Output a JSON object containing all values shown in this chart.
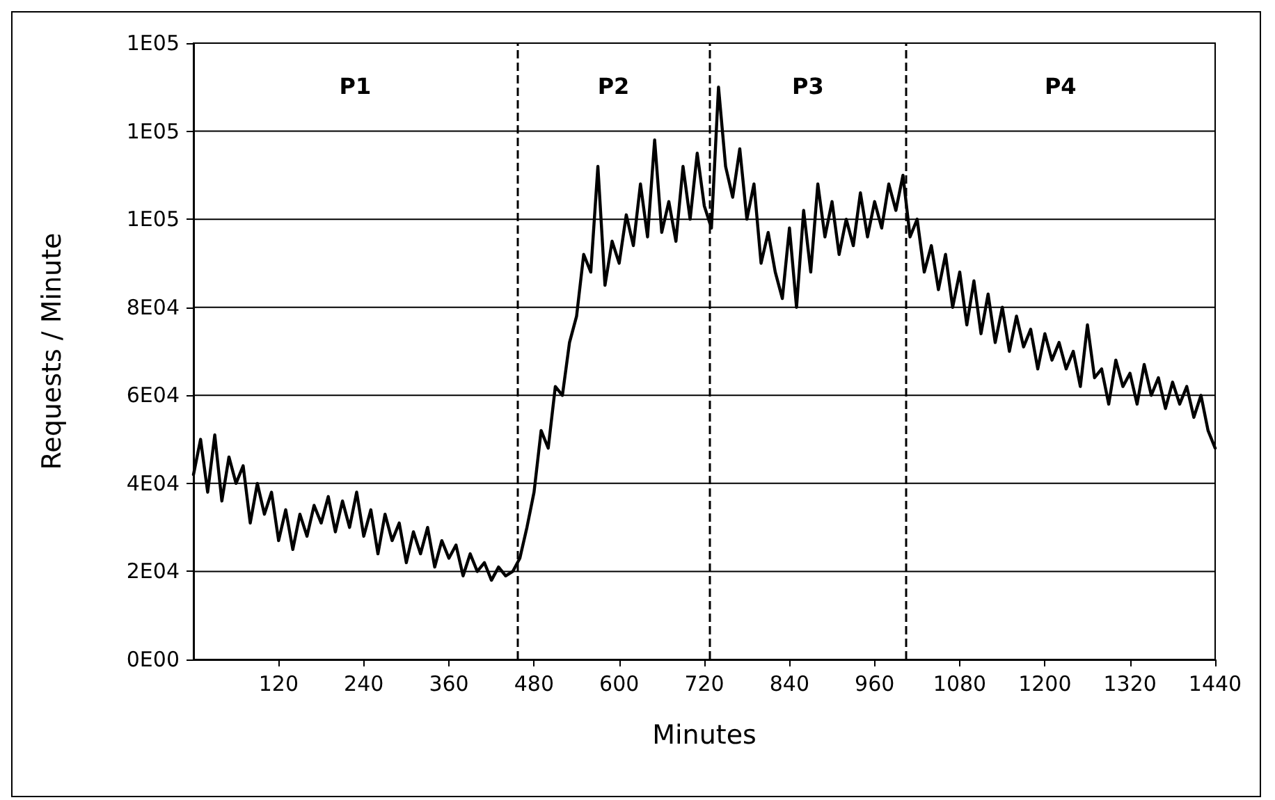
{
  "chart_data": {
    "type": "line",
    "xlabel": "Minutes",
    "ylabel": "Requests / Minute",
    "x": [
      0,
      10,
      20,
      30,
      40,
      50,
      60,
      70,
      80,
      90,
      100,
      110,
      120,
      130,
      140,
      150,
      160,
      170,
      180,
      190,
      200,
      210,
      220,
      230,
      240,
      250,
      260,
      270,
      280,
      290,
      300,
      310,
      320,
      330,
      340,
      350,
      360,
      370,
      380,
      390,
      400,
      410,
      420,
      430,
      440,
      450,
      460,
      470,
      480,
      490,
      500,
      510,
      520,
      530,
      540,
      550,
      560,
      570,
      580,
      590,
      600,
      610,
      620,
      630,
      640,
      650,
      660,
      670,
      680,
      690,
      700,
      710,
      720,
      730,
      740,
      750,
      760,
      770,
      780,
      790,
      800,
      810,
      820,
      830,
      840,
      850,
      860,
      870,
      880,
      890,
      900,
      910,
      920,
      930,
      940,
      950,
      960,
      970,
      980,
      990,
      1000,
      1010,
      1020,
      1030,
      1040,
      1050,
      1060,
      1070,
      1080,
      1090,
      1100,
      1110,
      1120,
      1130,
      1140,
      1150,
      1160,
      1170,
      1180,
      1190,
      1200,
      1210,
      1220,
      1230,
      1240,
      1250,
      1260,
      1270,
      1280,
      1290,
      1300,
      1310,
      1320,
      1330,
      1340,
      1350,
      1360,
      1370,
      1380,
      1390,
      1400,
      1410,
      1420,
      1430,
      1440
    ],
    "series": [
      {
        "color": "#000000",
        "values": [
          42000,
          50000,
          38000,
          51000,
          36000,
          46000,
          40000,
          44000,
          31000,
          40000,
          33000,
          38000,
          27000,
          34000,
          25000,
          33000,
          28000,
          35000,
          31000,
          37000,
          29000,
          36000,
          30000,
          38000,
          28000,
          34000,
          24000,
          33000,
          27000,
          31000,
          22000,
          29000,
          24000,
          30000,
          21000,
          27000,
          23000,
          26000,
          19000,
          24000,
          20000,
          22000,
          18000,
          21000,
          19000,
          20000,
          23000,
          30000,
          38000,
          52000,
          48000,
          62000,
          60000,
          72000,
          78000,
          92000,
          88000,
          112000,
          85000,
          95000,
          90000,
          101000,
          94000,
          108000,
          96000,
          118000,
          97000,
          104000,
          95000,
          112000,
          100000,
          115000,
          103000,
          98000,
          130000,
          112000,
          105000,
          116000,
          100000,
          108000,
          90000,
          97000,
          88000,
          82000,
          98000,
          80000,
          102000,
          88000,
          108000,
          96000,
          104000,
          92000,
          100000,
          94000,
          106000,
          96000,
          104000,
          98000,
          108000,
          102000,
          110000,
          96000,
          100000,
          88000,
          94000,
          84000,
          92000,
          80000,
          88000,
          76000,
          86000,
          74000,
          83000,
          72000,
          80000,
          70000,
          78000,
          71000,
          75000,
          66000,
          74000,
          68000,
          72000,
          66000,
          70000,
          62000,
          76000,
          64000,
          66000,
          58000,
          68000,
          62000,
          65000,
          58000,
          67000,
          60000,
          64000,
          57000,
          63000,
          58000,
          62000,
          55000,
          60000,
          52000,
          48000
        ]
      }
    ],
    "xlim": [
      0,
      1440
    ],
    "xticks": [
      120,
      240,
      360,
      480,
      600,
      720,
      840,
      960,
      1080,
      1200,
      1320,
      1440
    ],
    "ylim": [
      0,
      140000
    ],
    "yticks": [
      {
        "value": 0,
        "label": "0E00"
      },
      {
        "value": 20000,
        "label": "2E04"
      },
      {
        "value": 40000,
        "label": "4E04"
      },
      {
        "value": 60000,
        "label": "6E04"
      },
      {
        "value": 80000,
        "label": "8E04"
      },
      {
        "value": 100000,
        "label": "1E05"
      },
      {
        "value": 120000,
        "label": "1E05"
      },
      {
        "value": 140000,
        "label": "1E05"
      }
    ],
    "ref_lines": [
      {
        "axis": "x",
        "value": 456,
        "line_style": "dashed",
        "color": "#000000"
      },
      {
        "axis": "x",
        "value": 728,
        "line_style": "dashed",
        "color": "#000000"
      },
      {
        "axis": "x",
        "value": 1004,
        "line_style": "dashed",
        "color": "#000000"
      }
    ],
    "annotations": [
      "P1",
      "P2",
      "P3",
      "P4"
    ],
    "grid": "y",
    "marker": "none",
    "line_style": "solid"
  }
}
